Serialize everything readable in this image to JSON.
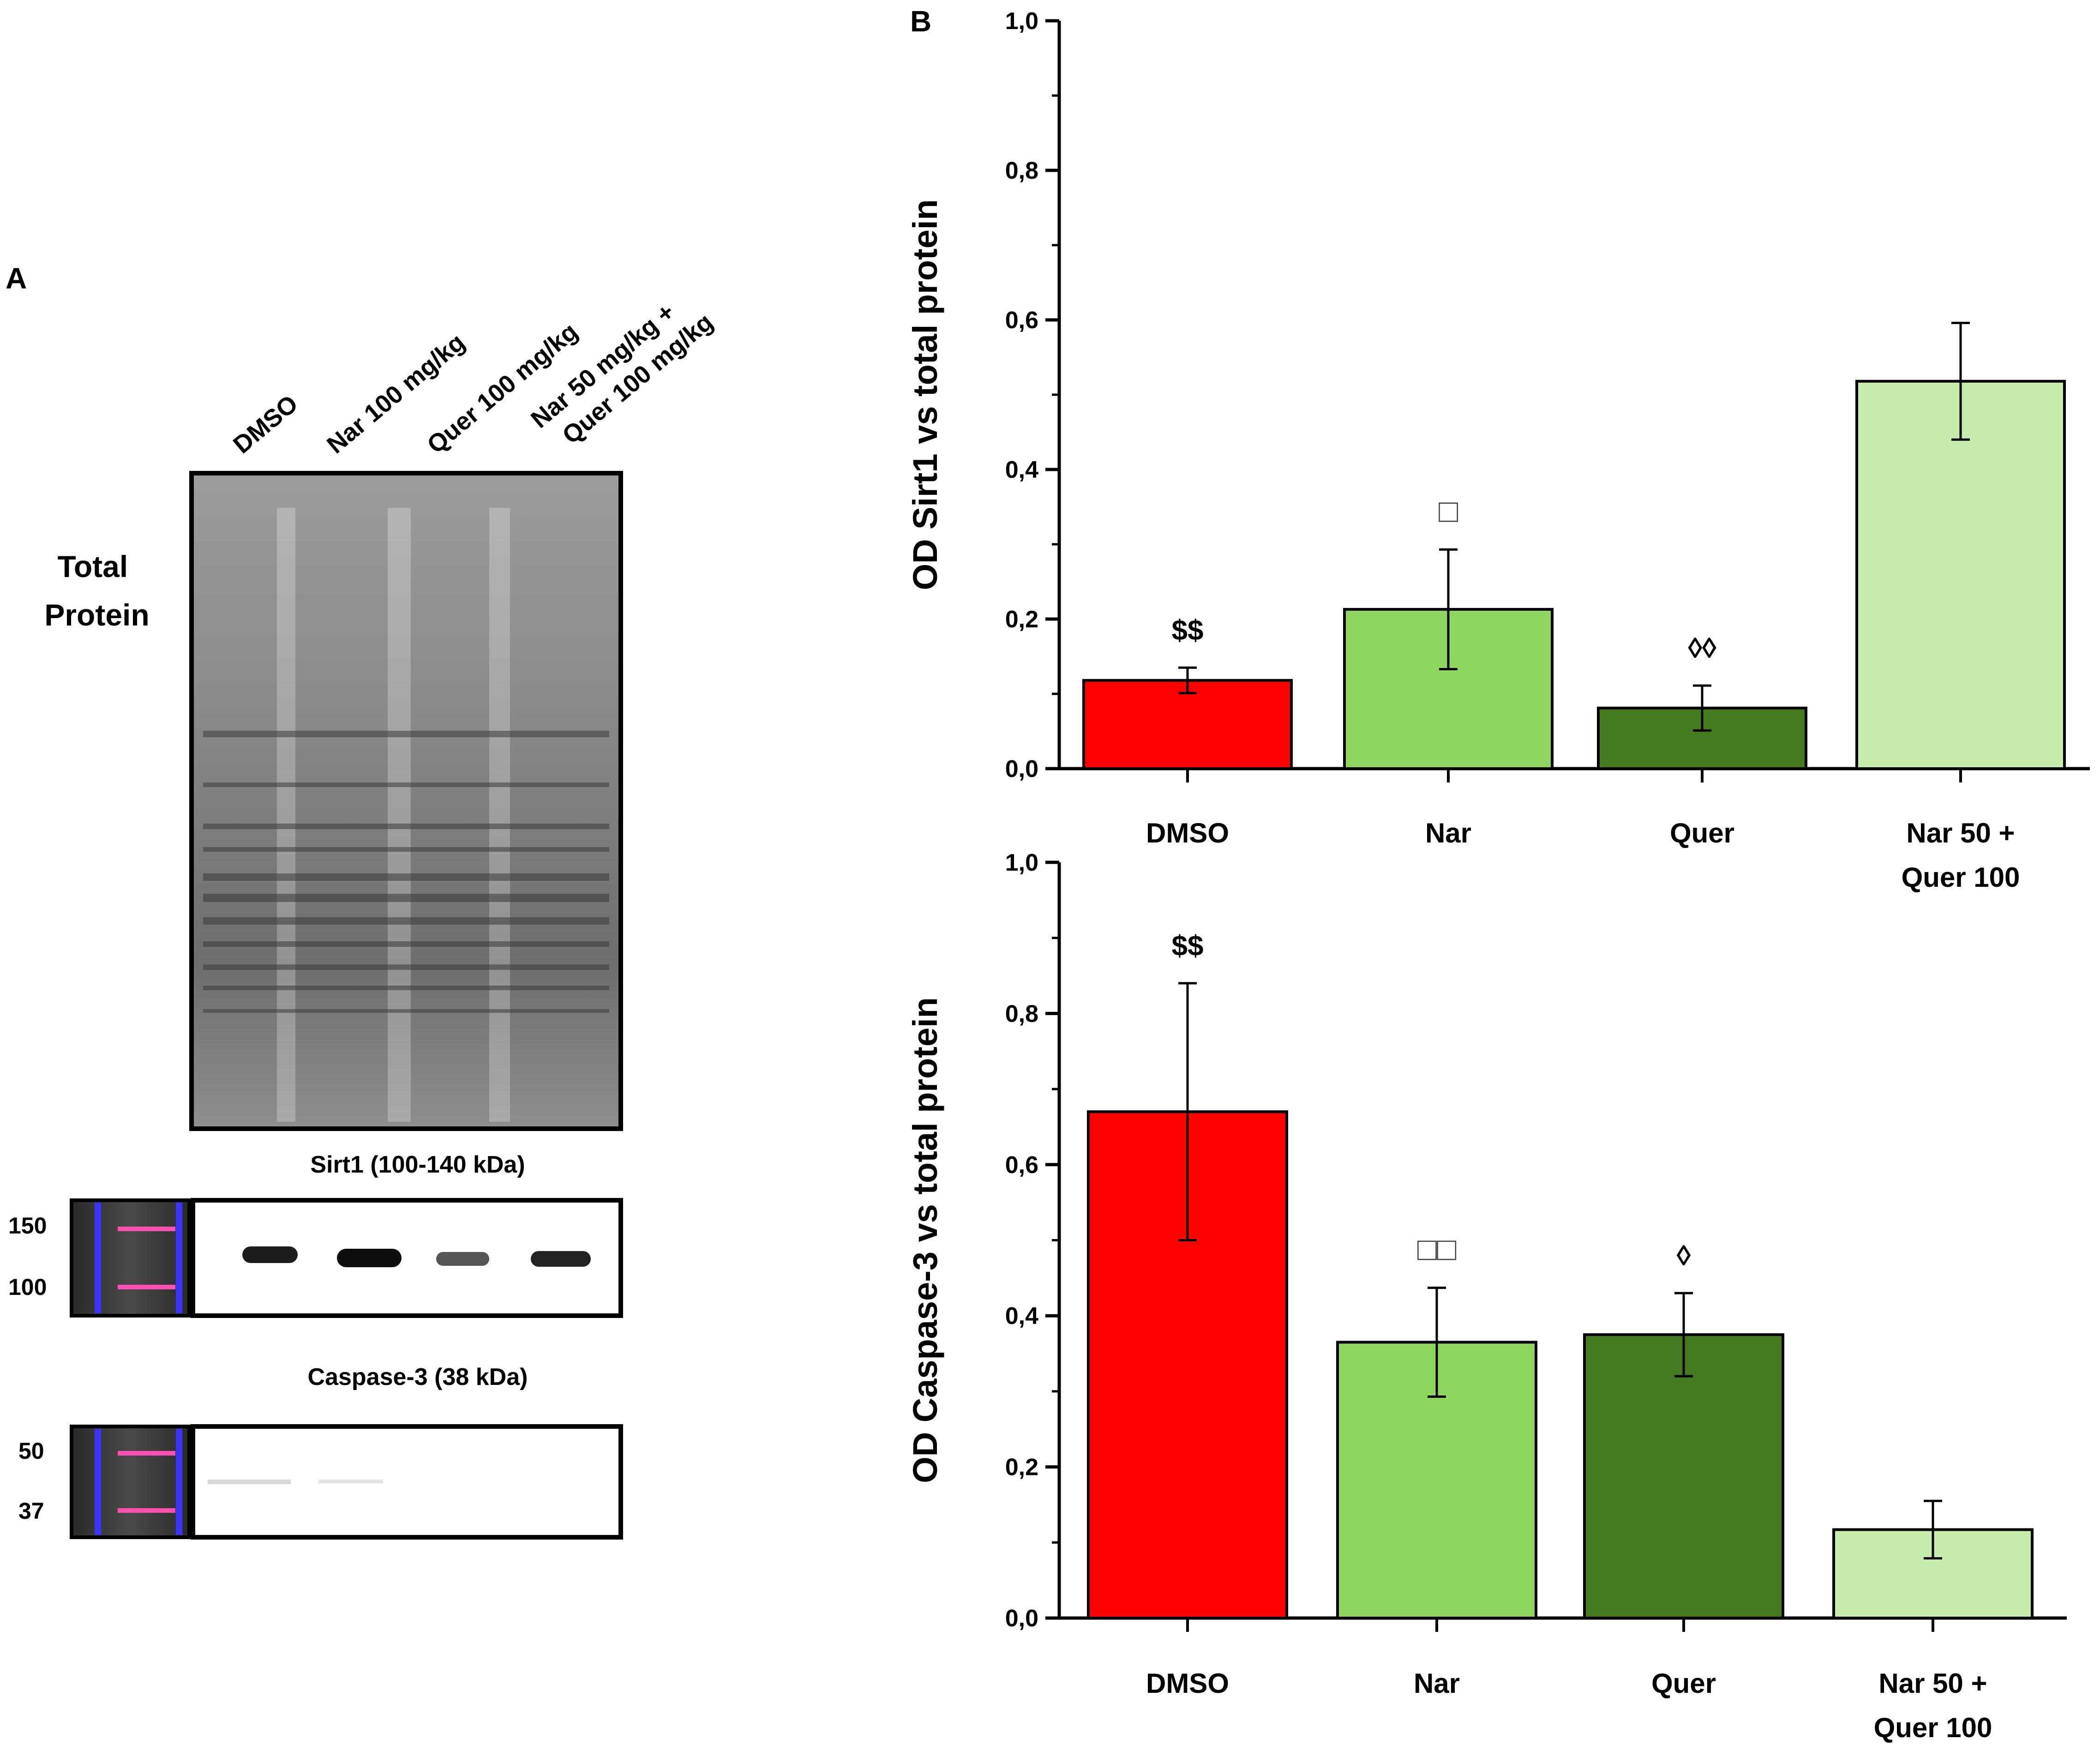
{
  "panels": {
    "a_label": "A",
    "b_label": "B"
  },
  "blot": {
    "lane_labels": [
      {
        "lines": [
          "DMSO"
        ]
      },
      {
        "lines": [
          "Nar 100 mg/kg"
        ]
      },
      {
        "lines": [
          "Quer 100 mg/kg"
        ]
      },
      {
        "lines": [
          "Nar 50 mg/kg +",
          "Quer 100 mg/kg"
        ]
      }
    ],
    "total_protein_label": [
      "Total",
      "Protein"
    ],
    "sirt1": {
      "title": "Sirt1 (100-140 kDa)",
      "markers": [
        "150",
        "100"
      ]
    },
    "caspase3": {
      "title": "Caspase-3 (38 kDa)",
      "markers": [
        "50",
        "37"
      ]
    }
  },
  "chart_data": [
    {
      "type": "bar",
      "title": "",
      "xlabel": "",
      "ylabel": "OD Sirt1 vs total protein",
      "ylim": [
        0,
        1.0
      ],
      "yticks": [
        "0,0",
        "0,2",
        "0,4",
        "0,6",
        "0,8",
        "1,0"
      ],
      "categories": [
        [
          "DMSO"
        ],
        [
          "Nar"
        ],
        [
          "Quer"
        ],
        [
          "Nar 50 +",
          "Quer 100"
        ]
      ],
      "values": [
        0.118,
        0.213,
        0.081,
        0.518
      ],
      "errors": [
        0.017,
        0.08,
        0.03,
        0.078
      ],
      "colors": [
        "#ff0000",
        "#8fd660",
        "#447b21",
        "#c6edae"
      ],
      "annotations": [
        "$$",
        "□",
        "◊◊",
        ""
      ]
    },
    {
      "type": "bar",
      "title": "",
      "xlabel": "",
      "ylabel": "OD Caspase-3 vs total protein",
      "ylim": [
        0,
        1.0
      ],
      "yticks": [
        "0,0",
        "0,2",
        "0,4",
        "0,6",
        "0,8",
        "1,0"
      ],
      "categories": [
        [
          "DMSO"
        ],
        [
          "Nar"
        ],
        [
          "Quer"
        ],
        [
          "Nar 50 +",
          "Quer 100"
        ]
      ],
      "values": [
        0.67,
        0.365,
        0.375,
        0.117
      ],
      "errors": [
        0.17,
        0.072,
        0.055,
        0.038
      ],
      "colors": [
        "#ff0000",
        "#8fd660",
        "#447b21",
        "#c6edae"
      ],
      "annotations": [
        "$$",
        "□□",
        "◊",
        ""
      ]
    }
  ]
}
